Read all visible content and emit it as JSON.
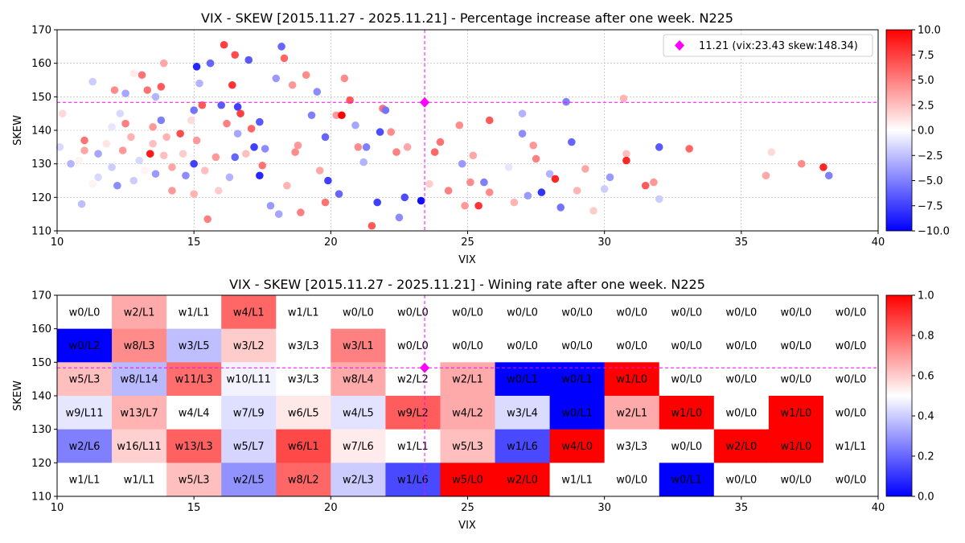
{
  "chart_data": [
    {
      "type": "scatter",
      "title": "VIX - SKEW [2015.11.27 - 2025.11.21]  - Percentage increase after one week. N225",
      "xlabel": "VIX",
      "ylabel": "SKEW",
      "xlim": [
        10,
        40
      ],
      "ylim": [
        110,
        170
      ],
      "xticks": [
        "10",
        "15",
        "20",
        "25",
        "30",
        "35",
        "40"
      ],
      "yticks": [
        "110",
        "120",
        "130",
        "140",
        "150",
        "160",
        "170"
      ],
      "grid": true,
      "legend": {
        "placement": "top-right",
        "label": "11.21 (vix:23.43 skew:148.34)"
      },
      "current_point": {
        "x": 23.43,
        "y": 148.34,
        "color": "#ff00ff"
      },
      "colorbar": {
        "min": -10,
        "max": 10,
        "ticks": [
          "10.0",
          "7.5",
          "5.0",
          "2.5",
          "0.0",
          "−2.5",
          "−5.0",
          "−7.5",
          "−10.0"
        ],
        "colors": [
          "#0000ff",
          "#ffffff",
          "#ff0000"
        ]
      },
      "points": [
        [
          10.1,
          135,
          -1.5
        ],
        [
          10.2,
          145,
          1.5
        ],
        [
          10.5,
          130,
          -3.0
        ],
        [
          10.8,
          131,
          0.5
        ],
        [
          10.9,
          118,
          -2.5
        ],
        [
          11.0,
          137,
          5.5
        ],
        [
          11.0,
          134,
          3.5
        ],
        [
          11.3,
          124,
          0.5
        ],
        [
          11.3,
          154.5,
          -2.0
        ],
        [
          11.5,
          126,
          -1.5
        ],
        [
          11.5,
          133,
          -3.5
        ],
        [
          11.8,
          136,
          1.0
        ],
        [
          12.0,
          141,
          -1.0
        ],
        [
          12.0,
          129,
          -2.0
        ],
        [
          12.1,
          152,
          4.5
        ],
        [
          12.2,
          123.5,
          -4.5
        ],
        [
          12.3,
          145,
          -1.5
        ],
        [
          12.4,
          134,
          4.0
        ],
        [
          12.5,
          151,
          -3.5
        ],
        [
          12.5,
          142,
          5.0
        ],
        [
          12.7,
          138,
          3.0
        ],
        [
          12.8,
          125,
          -2.0
        ],
        [
          12.8,
          157,
          0.8
        ],
        [
          13.0,
          131,
          -1.5
        ],
        [
          13.1,
          156.5,
          5.5
        ],
        [
          13.2,
          128,
          0.5
        ],
        [
          13.3,
          152,
          5.5
        ],
        [
          13.4,
          133,
          9.0
        ],
        [
          13.5,
          141,
          4.0
        ],
        [
          13.5,
          136,
          2.5
        ],
        [
          13.6,
          150,
          -3.0
        ],
        [
          13.6,
          127,
          -4.0
        ],
        [
          13.8,
          143,
          -5.0
        ],
        [
          13.8,
          153,
          6.5
        ],
        [
          13.9,
          160,
          3.5
        ],
        [
          13.9,
          132.5,
          2.5
        ],
        [
          14.0,
          138,
          3.0
        ],
        [
          14.2,
          122,
          4.0
        ],
        [
          14.2,
          129,
          3.5
        ],
        [
          14.5,
          139,
          7.0
        ],
        [
          14.6,
          133,
          2.0
        ],
        [
          14.7,
          126.5,
          -4.5
        ],
        [
          14.9,
          143,
          1.5
        ],
        [
          15.0,
          130,
          -7.5
        ],
        [
          15.0,
          146,
          -5.5
        ],
        [
          15.0,
          121,
          3.0
        ],
        [
          15.1,
          159,
          -8.5
        ],
        [
          15.1,
          137,
          4.0
        ],
        [
          15.2,
          154,
          -3.0
        ],
        [
          15.3,
          147.5,
          6.5
        ],
        [
          15.4,
          128,
          2.5
        ],
        [
          15.5,
          113.5,
          5.0
        ],
        [
          15.6,
          160,
          -6.0
        ],
        [
          15.8,
          132,
          4.0
        ],
        [
          15.9,
          122,
          2.0
        ],
        [
          16.0,
          147.5,
          -6.5
        ],
        [
          16.1,
          165.5,
          7.5
        ],
        [
          16.2,
          142,
          5.0
        ],
        [
          16.3,
          126,
          -3.0
        ],
        [
          16.4,
          153.5,
          8.0
        ],
        [
          16.5,
          132,
          -6.0
        ],
        [
          16.5,
          162.5,
          7.0
        ],
        [
          16.6,
          147,
          -7.5
        ],
        [
          16.6,
          139,
          -3.5
        ],
        [
          16.7,
          145,
          7.5
        ],
        [
          16.9,
          133,
          2.5
        ],
        [
          17.0,
          161,
          -6.5
        ],
        [
          17.1,
          140.5,
          6.0
        ],
        [
          17.2,
          135,
          -7.5
        ],
        [
          17.4,
          142.5,
          -6.5
        ],
        [
          17.4,
          126.5,
          -8.5
        ],
        [
          17.5,
          129.5,
          5.5
        ],
        [
          17.6,
          134.5,
          -4.5
        ],
        [
          17.8,
          117.5,
          -4.0
        ],
        [
          18.0,
          155.5,
          -4.0
        ],
        [
          18.1,
          115,
          -3.5
        ],
        [
          18.2,
          165,
          -6.0
        ],
        [
          18.3,
          161.5,
          6.0
        ],
        [
          18.4,
          123.5,
          3.0
        ],
        [
          18.6,
          153.5,
          4.0
        ],
        [
          18.7,
          133.5,
          4.5
        ],
        [
          18.8,
          135.5,
          4.0
        ],
        [
          18.9,
          115.5,
          5.0
        ],
        [
          19.1,
          156.5,
          4.5
        ],
        [
          19.3,
          144.5,
          -5.0
        ],
        [
          19.5,
          151.5,
          -4.5
        ],
        [
          19.6,
          128,
          3.5
        ],
        [
          19.8,
          118.5,
          5.5
        ],
        [
          19.8,
          138,
          -6.0
        ],
        [
          19.9,
          125,
          -7.5
        ],
        [
          20.2,
          144.5,
          4.0
        ],
        [
          20.3,
          121,
          -6.0
        ],
        [
          20.4,
          144.5,
          10.0
        ],
        [
          20.5,
          155.5,
          4.5
        ],
        [
          20.7,
          149,
          6.5
        ],
        [
          20.9,
          141.5,
          -3.5
        ],
        [
          21.0,
          135,
          4.5
        ],
        [
          21.2,
          130.5,
          -3.0
        ],
        [
          21.3,
          135,
          -5.0
        ],
        [
          21.5,
          111.5,
          6.5
        ],
        [
          21.7,
          118.5,
          -7.5
        ],
        [
          21.8,
          139.5,
          -7.0
        ],
        [
          21.9,
          146.5,
          5.5
        ],
        [
          22.0,
          146,
          -5.5
        ],
        [
          22.2,
          139.5,
          4.5
        ],
        [
          22.4,
          133.5,
          5.0
        ],
        [
          22.5,
          114,
          -4.5
        ],
        [
          22.7,
          120,
          -7.0
        ],
        [
          22.8,
          135,
          3.5
        ],
        [
          23.3,
          119,
          -9.5
        ],
        [
          23.6,
          124,
          2.0
        ],
        [
          23.8,
          133.5,
          6.0
        ],
        [
          24.0,
          136.5,
          5.5
        ],
        [
          24.3,
          122,
          5.0
        ],
        [
          24.7,
          141.5,
          4.5
        ],
        [
          24.8,
          130,
          -4.0
        ],
        [
          24.9,
          117.5,
          4.0
        ],
        [
          25.1,
          124.5,
          4.5
        ],
        [
          25.2,
          132.5,
          3.5
        ],
        [
          25.4,
          117.5,
          8.0
        ],
        [
          25.6,
          124.5,
          -5.0
        ],
        [
          25.8,
          121.5,
          4.5
        ],
        [
          25.8,
          143,
          6.5
        ],
        [
          26.5,
          129,
          -1.0
        ],
        [
          26.7,
          118.5,
          3.0
        ],
        [
          27.0,
          139,
          -4.5
        ],
        [
          27.0,
          145,
          -3.0
        ],
        [
          27.2,
          120.5,
          -4.0
        ],
        [
          27.4,
          135.5,
          4.0
        ],
        [
          27.5,
          131.5,
          5.0
        ],
        [
          27.7,
          121.5,
          -8.0
        ],
        [
          28.0,
          127,
          -3.0
        ],
        [
          28.2,
          125.5,
          8.5
        ],
        [
          28.4,
          117,
          -5.5
        ],
        [
          28.6,
          148.5,
          -5.0
        ],
        [
          28.8,
          136.5,
          -6.0
        ],
        [
          29.0,
          122,
          3.0
        ],
        [
          29.3,
          128.5,
          3.5
        ],
        [
          29.6,
          116,
          2.0
        ],
        [
          30.0,
          122.5,
          -2.0
        ],
        [
          30.2,
          126,
          -4.0
        ],
        [
          30.7,
          149.5,
          3.0
        ],
        [
          30.8,
          133,
          2.5
        ],
        [
          30.8,
          131,
          8.5
        ],
        [
          31.5,
          123.5,
          6.5
        ],
        [
          31.8,
          124.5,
          4.0
        ],
        [
          32.0,
          135,
          -6.5
        ],
        [
          32.0,
          119.5,
          -2.0
        ],
        [
          33.1,
          134.5,
          6.0
        ],
        [
          35.9,
          126.5,
          3.5
        ],
        [
          36.1,
          133.5,
          1.5
        ],
        [
          37.2,
          130,
          4.5
        ],
        [
          38.0,
          129,
          8.5
        ],
        [
          38.2,
          126.5,
          -5.0
        ]
      ]
    },
    {
      "type": "heatmap",
      "title": "VIX - SKEW [2015.11.27 - 2025.11.21]  - Wining rate after one week. N225",
      "xlabel": "VIX",
      "ylabel": "SKEW",
      "xlim": [
        10,
        40
      ],
      "ylim": [
        110,
        170
      ],
      "xticks": [
        "10",
        "15",
        "20",
        "25",
        "30",
        "35",
        "40"
      ],
      "yticks": [
        "110",
        "120",
        "130",
        "140",
        "150",
        "160",
        "170"
      ],
      "x_edges": [
        10,
        12,
        14,
        16,
        18,
        20,
        22,
        24,
        26,
        28,
        30,
        32,
        34,
        36,
        38,
        40
      ],
      "y_edges": [
        170,
        160,
        150,
        140,
        130,
        120,
        110
      ],
      "current_point": {
        "x": 23.43,
        "y": 148.34,
        "color": "#ff00ff"
      },
      "colorbar": {
        "min": 0,
        "max": 1,
        "ticks": [
          "1.0",
          "0.8",
          "0.6",
          "0.4",
          "0.2",
          "0.0"
        ],
        "colors": [
          "#0000ff",
          "#ffffff",
          "#ff0000"
        ]
      },
      "rows": [
        [
          "w0/L0",
          "w2/L1",
          "w1/L1",
          "w4/L1",
          "w1/L1",
          "w0/L0",
          "w0/L0",
          "w0/L0",
          "w0/L0",
          "w0/L0",
          "w0/L0",
          "w0/L0",
          "w0/L0",
          "w0/L0",
          "w0/L0"
        ],
        [
          "w0/L2",
          "w8/L3",
          "w3/L5",
          "w3/L2",
          "w3/L3",
          "w3/L1",
          "w0/L0",
          "w0/L0",
          "w0/L0",
          "w0/L0",
          "w0/L0",
          "w0/L0",
          "w0/L0",
          "w0/L0",
          "w0/L0"
        ],
        [
          "w5/L3",
          "w8/L14",
          "w11/L3",
          "w10/L11",
          "w3/L3",
          "w8/L4",
          "w2/L2",
          "w2/L1",
          "w0/L1",
          "w0/L1",
          "w1/L0",
          "w0/L0",
          "w0/L0",
          "w0/L0",
          "w0/L0"
        ],
        [
          "w9/L11",
          "w13/L7",
          "w4/L4",
          "w7/L9",
          "w6/L5",
          "w4/L5",
          "w9/L2",
          "w4/L2",
          "w3/L4",
          "w0/L1",
          "w2/L1",
          "w1/L0",
          "w0/L0",
          "w1/L0",
          "w0/L0"
        ],
        [
          "w2/L6",
          "w16/L11",
          "w13/L3",
          "w5/L7",
          "w6/L1",
          "w7/L6",
          "w1/L1",
          "w5/L3",
          "w1/L6",
          "w4/L0",
          "w3/L3",
          "w0/L0",
          "w2/L0",
          "w1/L0",
          "w1/L1"
        ],
        [
          "w1/L1",
          "w1/L1",
          "w5/L3",
          "w2/L5",
          "w8/L2",
          "w2/L3",
          "w1/L6",
          "w5/L0",
          "w2/L0",
          "w1/L1",
          "w0/L0",
          "w0/L1",
          "w0/L0",
          "w0/L0",
          "w0/L0"
        ]
      ]
    }
  ]
}
